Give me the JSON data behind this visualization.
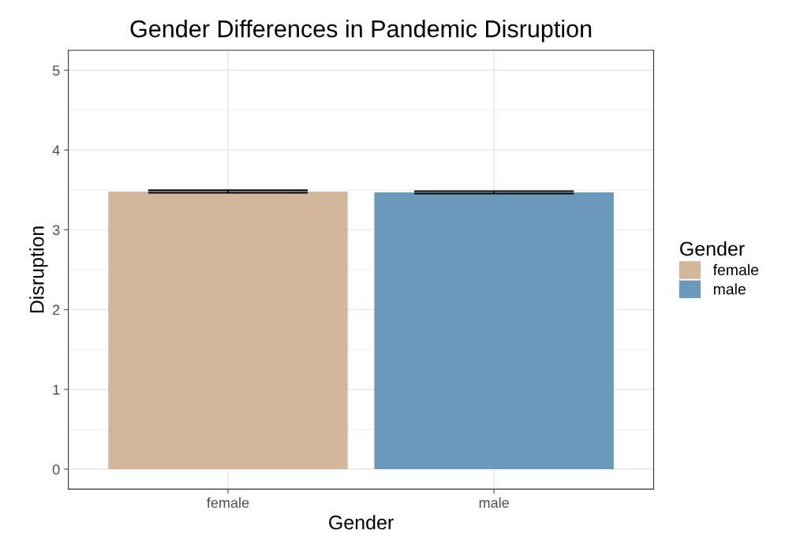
{
  "chart_data": {
    "type": "bar",
    "title": "Gender Differences in Pandemic Disruption",
    "xlabel": "Gender",
    "ylabel": "Disruption",
    "legend_title": "Gender",
    "categories": [
      "female",
      "male"
    ],
    "series": [
      {
        "name": "female",
        "color": "#d2b79c",
        "values": [
          3.48,
          null
        ],
        "errors": [
          0.015,
          null
        ]
      },
      {
        "name": "male",
        "color": "#6a99bc",
        "values": [
          null,
          3.47
        ],
        "errors": [
          null,
          0.015
        ]
      }
    ],
    "ylim": [
      -0.25,
      5.25
    ],
    "yticks": [
      0,
      1,
      2,
      3,
      4,
      5
    ],
    "grid": true,
    "legend": "right"
  }
}
